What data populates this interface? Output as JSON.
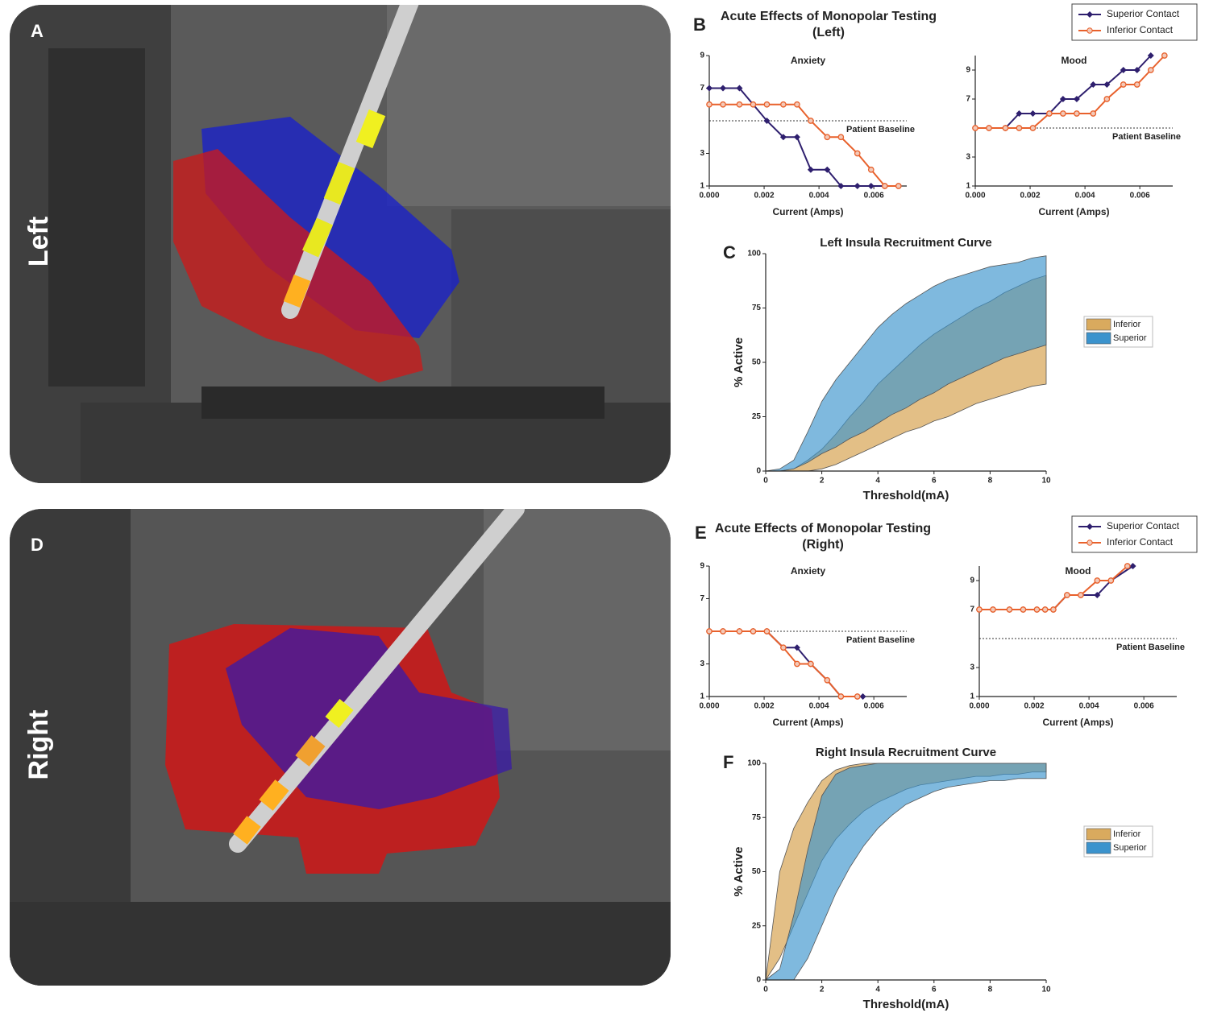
{
  "figure": {
    "panels": [
      {
        "label": "A",
        "side": "Left"
      },
      {
        "label": "D",
        "side": "Right"
      }
    ],
    "groups": [
      {
        "label": "B",
        "title_lines": [
          "Acute Effects of Monopolar Testing",
          "(Left)"
        ]
      },
      {
        "label": "E",
        "title_lines": [
          "Acute Effects of Monopolar Testing",
          "(Right)"
        ]
      }
    ]
  },
  "chart_data": [
    {
      "type": "line",
      "title": "Anxiety",
      "x_label": "Current (Amps)",
      "xlim": [
        0,
        0.0072
      ],
      "xticks": [
        {
          "value": 0,
          "label": "0.000"
        },
        {
          "value": 0.002,
          "label": "0.002"
        },
        {
          "value": 0.004,
          "label": "0.004"
        },
        {
          "value": 0.006,
          "label": "0.006"
        }
      ],
      "ylim": [
        1,
        9
      ],
      "yticks": [
        1,
        3,
        7,
        9
      ],
      "baseline": {
        "value": 5,
        "label": "Patient Baseline"
      },
      "series": [
        {
          "name": "Superior Contact",
          "color": "#2e1f6e",
          "marker": "diamond",
          "x": [
            0,
            0.0005,
            0.0011,
            0.0021,
            0.0027,
            0.0032,
            0.0037,
            0.0043,
            0.0048,
            0.0054,
            0.0059,
            0.0064
          ],
          "values": [
            7,
            7,
            7,
            5,
            4,
            4,
            2,
            2,
            1,
            1,
            1,
            1
          ]
        },
        {
          "name": "Inferior Contact",
          "color": "#e8612c",
          "marker": "circle",
          "x": [
            0,
            0.0005,
            0.0011,
            0.0016,
            0.0021,
            0.0027,
            0.0032,
            0.0037,
            0.0043,
            0.0048,
            0.0054,
            0.0059,
            0.0064,
            0.0069
          ],
          "values": [
            6,
            6,
            6,
            6,
            6,
            6,
            6,
            5,
            4,
            4,
            3,
            2,
            1,
            1
          ]
        }
      ]
    },
    {
      "type": "line",
      "title": "Mood",
      "x_label": "Current (Amps)",
      "xlim": [
        0,
        0.0072
      ],
      "xticks": [
        {
          "value": 0,
          "label": "0.000"
        },
        {
          "value": 0.002,
          "label": "0.002"
        },
        {
          "value": 0.004,
          "label": "0.004"
        },
        {
          "value": 0.006,
          "label": "0.006"
        }
      ],
      "ylim": [
        1,
        10
      ],
      "yticks": [
        1,
        3,
        7,
        9
      ],
      "baseline": {
        "value": 5,
        "label": "Patient Baseline"
      },
      "series": [
        {
          "color": "#2e1f6e",
          "marker": "diamond",
          "x": [
            0,
            0.0005,
            0.0011,
            0.0016,
            0.0021,
            0.0027,
            0.0032,
            0.0037,
            0.0043,
            0.0048,
            0.0054,
            0.0059,
            0.0064
          ],
          "values": [
            5,
            5,
            5,
            6,
            6,
            6,
            7,
            7,
            8,
            8,
            9,
            9,
            10
          ]
        },
        {
          "color": "#e8612c",
          "marker": "circle",
          "x": [
            0,
            0.0005,
            0.0011,
            0.0016,
            0.0021,
            0.0027,
            0.0032,
            0.0037,
            0.0043,
            0.0048,
            0.0054,
            0.0059,
            0.0064,
            0.0069
          ],
          "values": [
            5,
            5,
            5,
            5,
            5,
            6,
            6,
            6,
            6,
            7,
            8,
            8,
            9,
            10
          ]
        }
      ]
    },
    {
      "type": "area",
      "panel_label": "C",
      "title": "Left Insula Recruitment Curve",
      "x_label": "Threshold(mA)",
      "y_label": "% Active",
      "xlim": [
        0,
        10
      ],
      "xticks": [
        0,
        2,
        4,
        6,
        8,
        10
      ],
      "ylim": [
        0,
        100
      ],
      "yticks": [
        0,
        25,
        50,
        75,
        100
      ],
      "x": [
        0,
        0.5,
        1,
        1.5,
        2,
        2.5,
        3,
        3.5,
        4,
        4.5,
        5,
        5.5,
        6,
        6.5,
        7,
        7.5,
        8,
        8.5,
        9,
        9.5,
        10
      ],
      "series": [
        {
          "name": "Inferior",
          "color": "#d9aa5e",
          "upper": [
            0,
            0,
            1,
            5,
            10,
            17,
            25,
            32,
            40,
            46,
            52,
            58,
            63,
            67,
            71,
            75,
            78,
            82,
            85,
            88,
            90
          ],
          "lower": [
            0,
            0,
            0,
            0,
            1,
            3,
            6,
            9,
            12,
            15,
            18,
            20,
            23,
            25,
            28,
            31,
            33,
            35,
            37,
            39,
            40
          ]
        },
        {
          "name": "Superior",
          "color": "#3b93cd",
          "upper": [
            0,
            1,
            5,
            18,
            32,
            42,
            50,
            58,
            66,
            72,
            77,
            81,
            85,
            88,
            90,
            92,
            94,
            95,
            96,
            98,
            99
          ],
          "lower": [
            0,
            0,
            1,
            4,
            8,
            11,
            15,
            18,
            22,
            26,
            29,
            33,
            36,
            40,
            43,
            46,
            49,
            52,
            54,
            56,
            58
          ]
        }
      ]
    },
    {
      "type": "line",
      "title": "Anxiety",
      "x_label": "Current (Amps)",
      "xlim": [
        0,
        0.0072
      ],
      "xticks": [
        {
          "value": 0,
          "label": "0.000"
        },
        {
          "value": 0.002,
          "label": "0.002"
        },
        {
          "value": 0.004,
          "label": "0.004"
        },
        {
          "value": 0.006,
          "label": "0.006"
        }
      ],
      "ylim": [
        1,
        9
      ],
      "yticks": [
        1,
        3,
        7,
        9
      ],
      "baseline": {
        "value": 5,
        "label": "Patient Baseline"
      },
      "series": [
        {
          "name": "Superior Contact",
          "color": "#2e1f6e",
          "marker": "diamond",
          "x": [
            0,
            0.0005,
            0.0011,
            0.0016,
            0.0021,
            0.0027,
            0.0032,
            0.0037,
            0.0043,
            0.0048,
            0.0054,
            0.0056
          ],
          "values": [
            5,
            5,
            5,
            5,
            5,
            4,
            4,
            3,
            2,
            1,
            1,
            1
          ]
        },
        {
          "name": "Inferior Contact",
          "color": "#e8612c",
          "marker": "circle",
          "x": [
            0,
            0.0005,
            0.0011,
            0.0016,
            0.0021,
            0.0027,
            0.0032,
            0.0037,
            0.0043,
            0.0048,
            0.0054
          ],
          "values": [
            5,
            5,
            5,
            5,
            5,
            4,
            3,
            3,
            2,
            1,
            1
          ]
        }
      ]
    },
    {
      "type": "line",
      "title": "Mood",
      "x_label": "Current (Amps)",
      "xlim": [
        0,
        0.0072
      ],
      "xticks": [
        {
          "value": 0,
          "label": "0.000"
        },
        {
          "value": 0.002,
          "label": "0.002"
        },
        {
          "value": 0.004,
          "label": "0.004"
        },
        {
          "value": 0.006,
          "label": "0.006"
        }
      ],
      "ylim": [
        1,
        10
      ],
      "yticks": [
        1,
        3,
        7,
        9
      ],
      "baseline": {
        "value": 5,
        "label": "Patient Baseline"
      },
      "series": [
        {
          "color": "#2e1f6e",
          "marker": "diamond",
          "x": [
            0,
            0.0005,
            0.0011,
            0.0016,
            0.0021,
            0.0024,
            0.0027,
            0.0032,
            0.0037,
            0.0043,
            0.0048,
            0.0056
          ],
          "values": [
            7,
            7,
            7,
            7,
            7,
            7,
            7,
            8,
            8,
            8,
            9,
            10
          ]
        },
        {
          "color": "#e8612c",
          "marker": "circle",
          "x": [
            0,
            0.0005,
            0.0011,
            0.0016,
            0.0021,
            0.0024,
            0.0027,
            0.0032,
            0.0037,
            0.0043,
            0.0048,
            0.0054
          ],
          "values": [
            7,
            7,
            7,
            7,
            7,
            7,
            7,
            8,
            8,
            9,
            9,
            10
          ]
        }
      ]
    },
    {
      "type": "area",
      "panel_label": "F",
      "title": "Right Insula Recruitment Curve",
      "x_label": "Threshold(mA)",
      "y_label": "% Active",
      "xlim": [
        0,
        10
      ],
      "xticks": [
        0,
        2,
        4,
        6,
        8,
        10
      ],
      "ylim": [
        0,
        100
      ],
      "yticks": [
        0,
        25,
        50,
        75,
        100
      ],
      "x": [
        0,
        0.5,
        1,
        1.5,
        2,
        2.5,
        3,
        3.5,
        4,
        4.5,
        5,
        5.5,
        6,
        6.5,
        7,
        7.5,
        8,
        8.5,
        9,
        9.5,
        10
      ],
      "series": [
        {
          "name": "Inferior",
          "color": "#d9aa5e",
          "upper": [
            0,
            50,
            70,
            82,
            92,
            97,
            99,
            100,
            100,
            100,
            100,
            100,
            100,
            100,
            100,
            100,
            100,
            100,
            100,
            100,
            100
          ],
          "lower": [
            0,
            10,
            25,
            40,
            55,
            65,
            72,
            78,
            82,
            85,
            88,
            90,
            91,
            92,
            93,
            94,
            94,
            95,
            95,
            96,
            96
          ]
        },
        {
          "name": "Superior",
          "color": "#3b93cd",
          "upper": [
            0,
            5,
            30,
            60,
            85,
            95,
            98,
            99,
            100,
            100,
            100,
            100,
            100,
            100,
            100,
            100,
            100,
            100,
            100,
            100,
            100
          ],
          "lower": [
            0,
            0,
            0,
            10,
            25,
            40,
            52,
            62,
            70,
            76,
            81,
            84,
            87,
            89,
            90,
            91,
            92,
            92,
            93,
            93,
            93
          ]
        }
      ]
    }
  ]
}
